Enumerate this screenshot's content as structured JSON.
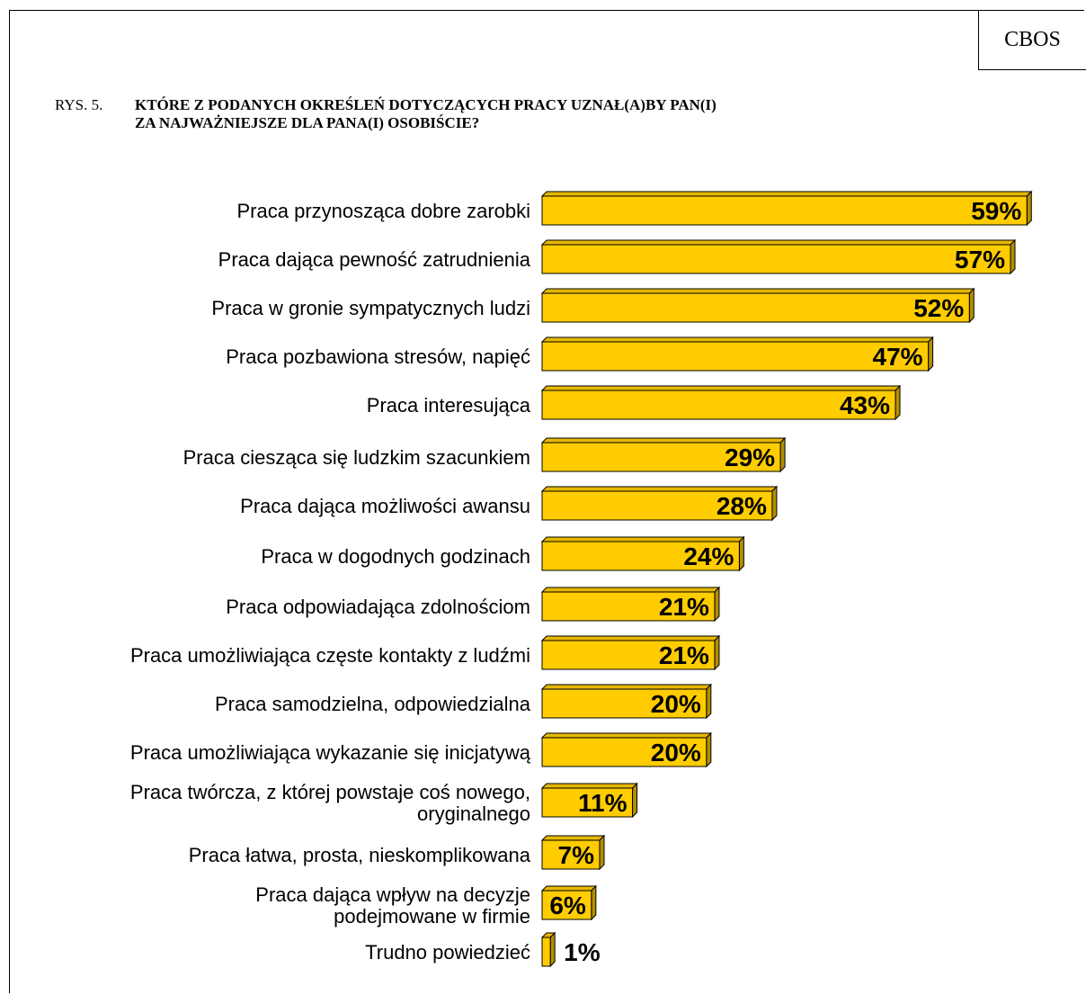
{
  "header": {
    "logo": "CBOS",
    "figure_label": "RYS. 5.",
    "title_line1": "KTÓRE Z PODANYCH OKREŚLEŃ DOTYCZĄCYCH PRACY UZNAŁ(A)BY PAN(I)",
    "title_line2": "ZA NAJWAŻNIEJSZE DLA PANA(I) OSOBIŚCIE?"
  },
  "colors": {
    "bar_front": "#FFCC00",
    "bar_top": "#E6B800",
    "bar_side": "#B38F00",
    "outline": "#000000"
  },
  "chart_data": {
    "type": "bar",
    "orientation": "horizontal",
    "title": "KTÓRE Z PODANYCH OKREŚLEŃ DOTYCZĄCYCH PRACY UZNAŁ(A)BY PAN(I) ZA NAJWAŻNIEJSZE DLA PANA(I) OSOBIŚCIE?",
    "unit": "%",
    "grid": false,
    "legend": "none",
    "categories": [
      [
        "Praca przynosząca dobre zarobki"
      ],
      [
        "Praca dająca pewność zatrudnienia"
      ],
      [
        "Praca w gronie sympatycznych ludzi"
      ],
      [
        "Praca pozbawiona stresów, napięć"
      ],
      [
        "Praca interesująca"
      ],
      [
        "Praca ciesząca się ludzkim szacunkiem"
      ],
      [
        "Praca dająca możliwości awansu"
      ],
      [
        "Praca w dogodnych godzinach"
      ],
      [
        "Praca odpowiadająca zdolnościom"
      ],
      [
        "Praca umożliwiająca częste kontakty z ludźmi"
      ],
      [
        "Praca samodzielna, odpowiedzialna"
      ],
      [
        "Praca umożliwiająca wykazanie się inicjatywą"
      ],
      [
        "Praca twórcza, z której powstaje coś nowego,",
        "oryginalnego"
      ],
      [
        "Praca łatwa, prosta, nieskomplikowana"
      ],
      [
        "Praca dająca wpływ na decyzje",
        "podejmowane w firmie"
      ],
      [
        "Trudno powiedzieć"
      ]
    ],
    "values": [
      59,
      57,
      52,
      47,
      43,
      29,
      28,
      24,
      21,
      21,
      20,
      20,
      11,
      7,
      6,
      1
    ],
    "value_labels": [
      "59%",
      "57%",
      "52%",
      "47%",
      "43%",
      "29%",
      "28%",
      "24%",
      "21%",
      "21%",
      "20%",
      "20%",
      "11%",
      "7%",
      "6%",
      "1%"
    ]
  }
}
